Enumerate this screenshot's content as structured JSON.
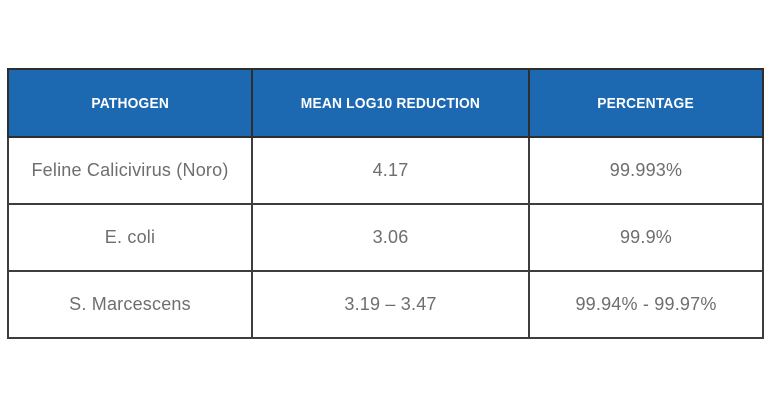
{
  "colors": {
    "header_background": "#1c69b2",
    "header_text": "#ffffff",
    "body_text": "#6d6e70",
    "border": "#2e2e2e",
    "page_background": "#ffffff"
  },
  "chart_data": {
    "type": "table",
    "title": "",
    "columns": [
      "PATHOGEN",
      "MEAN LOG10 REDUCTION",
      "PERCENTAGE"
    ],
    "rows": [
      [
        "Feline Calicivirus (Noro)",
        "4.17",
        "99.993%"
      ],
      [
        "E. coli",
        "3.06",
        "99.9%"
      ],
      [
        "S. Marcescens",
        "3.19 – 3.47",
        "99.94% - 99.97%"
      ]
    ]
  }
}
